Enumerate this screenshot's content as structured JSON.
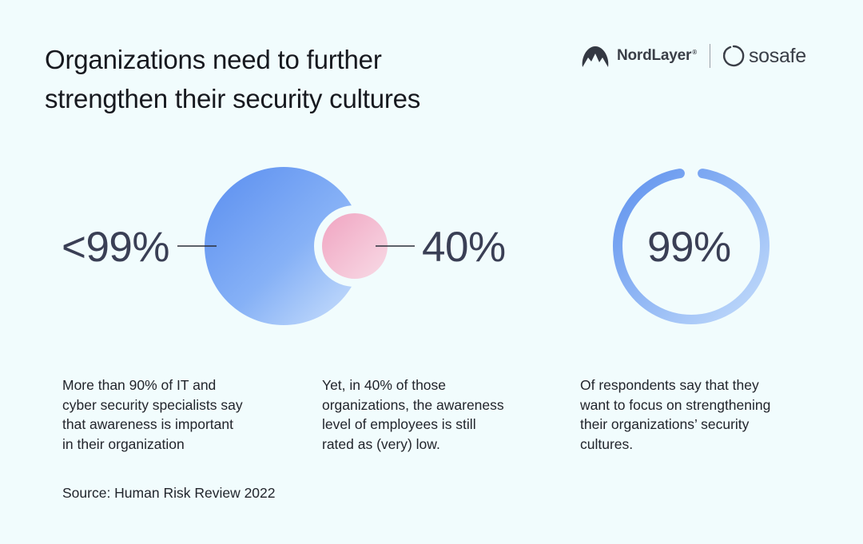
{
  "title_line1": "Organizations need to further",
  "title_line2": "strengthen their security cultures",
  "logos": {
    "nordlayer": "NordLayer",
    "nordlayer_mark": "®",
    "sosafe": "sosafe"
  },
  "stats": [
    {
      "value": "<99%",
      "lines": [
        "More than 90% of IT and",
        "cyber security specialists say",
        "that awareness is important",
        "in their organization"
      ]
    },
    {
      "value": "40%",
      "lines": [
        "Yet, in 40% of those",
        "organizations, the awareness",
        "level of employees is still",
        "rated as (very) low."
      ]
    },
    {
      "value": "99%",
      "progress_fraction": 0.99,
      "lines": [
        "Of respondents say that they",
        "want to focus on strengthening",
        "their organizations’ security",
        "cultures."
      ]
    }
  ],
  "source": "Source: Human Risk Review 2022",
  "colors": {
    "background": "#f1fcfd",
    "blue_dark": "#6496f0",
    "blue_light": "#b9d6fa",
    "pink_dark": "#f0a6c2",
    "pink_light": "#f8d3e0",
    "text": "#3a3f55"
  }
}
